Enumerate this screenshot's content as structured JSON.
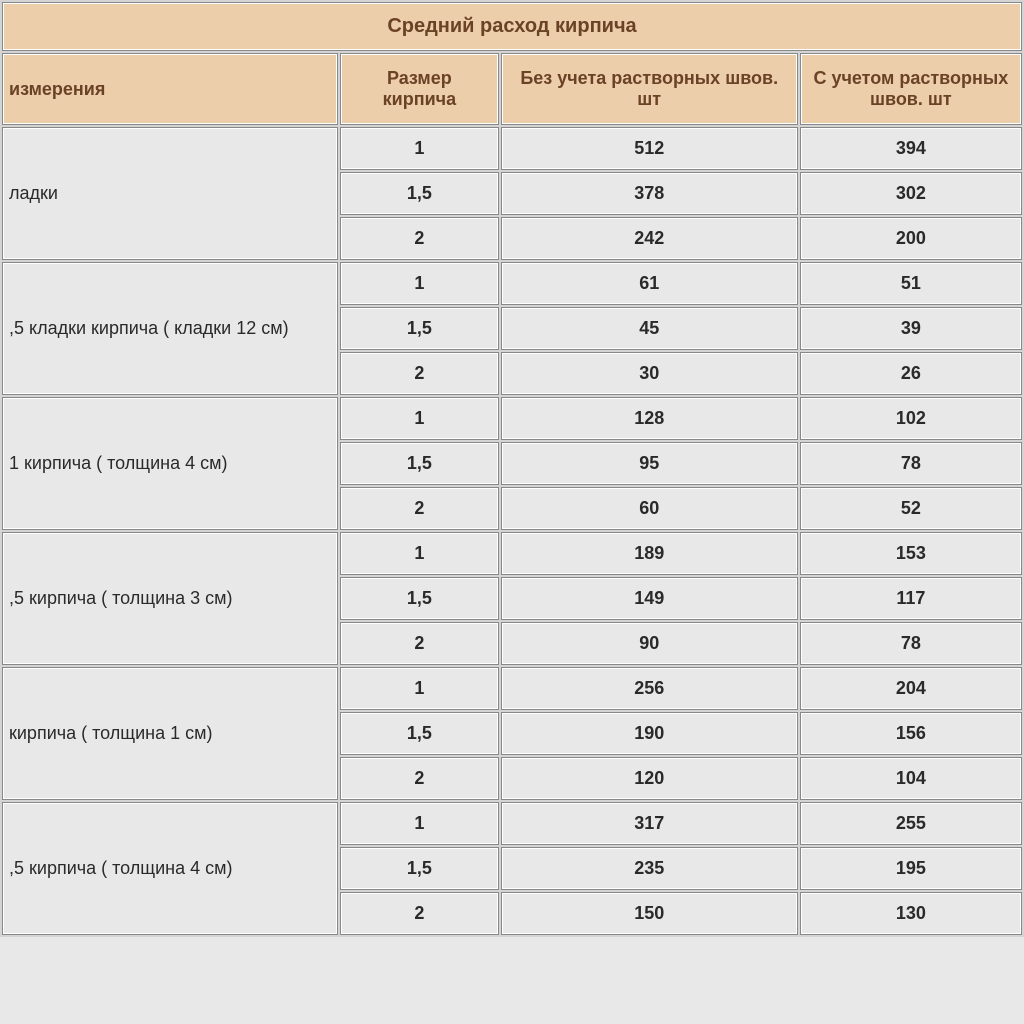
{
  "title": "Средний расход кирпича",
  "headers": {
    "measurement": "измерения",
    "size": "Размер кирпича",
    "without_joints": "Без учета растворных швов. шт",
    "with_joints": "С учетом растворных швов. шт"
  },
  "groups": [
    {
      "label": "ладки",
      "rows": [
        {
          "size": "1",
          "without": "512",
          "with": "394"
        },
        {
          "size": "1,5",
          "without": "378",
          "with": "302"
        },
        {
          "size": "2",
          "without": "242",
          "with": "200"
        }
      ]
    },
    {
      "label": ",5 кладки кирпича ( кладки 12 см)",
      "rows": [
        {
          "size": "1",
          "without": "61",
          "with": "51"
        },
        {
          "size": "1,5",
          "without": "45",
          "with": "39"
        },
        {
          "size": "2",
          "without": "30",
          "with": "26"
        }
      ]
    },
    {
      "label": " 1 кирпича ( толщина 4 см)",
      "rows": [
        {
          "size": "1",
          "without": "128",
          "with": "102"
        },
        {
          "size": "1,5",
          "without": "95",
          "with": "78"
        },
        {
          "size": "2",
          "without": "60",
          "with": "52"
        }
      ]
    },
    {
      "label": ",5 кирпича ( толщина 3 см)",
      "rows": [
        {
          "size": "1",
          "without": "189",
          "with": "153"
        },
        {
          "size": "1,5",
          "without": "149",
          "with": "117"
        },
        {
          "size": "2",
          "without": "90",
          "with": "78"
        }
      ]
    },
    {
      "label": " кирпича ( толщина 1 см)",
      "rows": [
        {
          "size": "1",
          "without": "256",
          "with": "204"
        },
        {
          "size": "1,5",
          "without": "190",
          "with": "156"
        },
        {
          "size": "2",
          "without": "120",
          "with": "104"
        }
      ]
    },
    {
      "label": ",5 кирпича ( толщина 4 см)",
      "rows": [
        {
          "size": "1",
          "without": "317",
          "with": "255"
        },
        {
          "size": "1,5",
          "without": "235",
          "with": "195"
        },
        {
          "size": "2",
          "without": "150",
          "with": "130"
        }
      ]
    }
  ],
  "styling": {
    "header_bg": "#ecceab",
    "header_text": "#6b4226",
    "cell_bg": "#e8e8e8",
    "cell_text": "#2a2a2a",
    "border_color": "#888888",
    "title_fontsize": 20,
    "header_fontsize": 18,
    "cell_fontsize": 18,
    "font_family": "Verdana, Arial, sans-serif",
    "column_widths": {
      "label": 340,
      "size": 160,
      "without": 300,
      "with": 224
    }
  }
}
